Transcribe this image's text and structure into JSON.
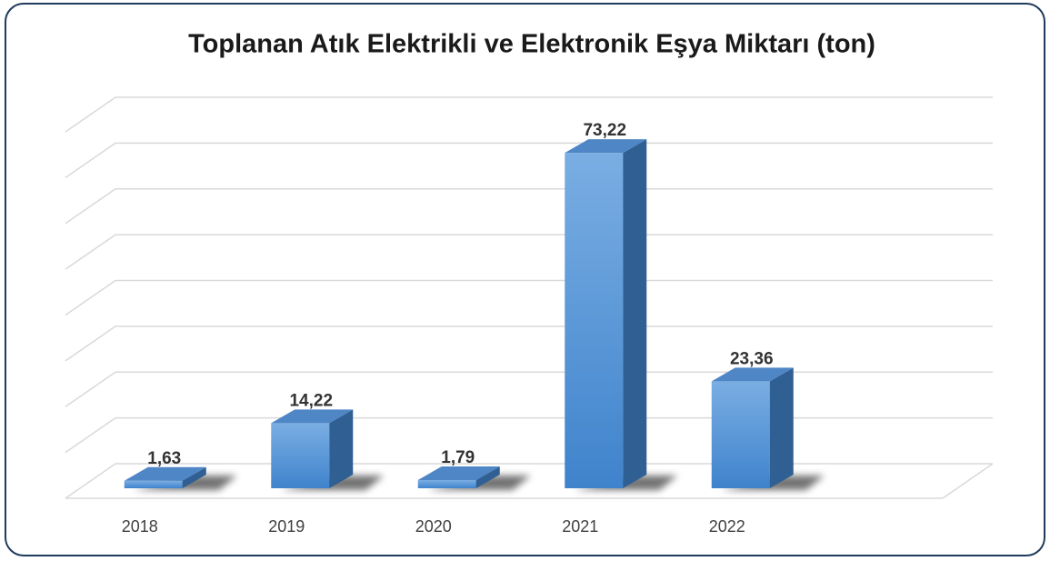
{
  "chart_data": {
    "type": "bar3d",
    "title": "Toplanan Atık Elektrikli ve Elektronik Eşya Miktarı (ton)",
    "categories": [
      "2018",
      "2019",
      "2020",
      "2021",
      "2022"
    ],
    "values": [
      1.63,
      14.22,
      1.79,
      73.22,
      23.36
    ],
    "value_labels": [
      "1,63",
      "14,22",
      "1,79",
      "73,22",
      "23,36"
    ],
    "color": "#5b9bd5",
    "ylim": [
      0,
      80
    ],
    "yticks": [
      0,
      10,
      20,
      30,
      40,
      50,
      60,
      70,
      80
    ],
    "grid": true
  }
}
